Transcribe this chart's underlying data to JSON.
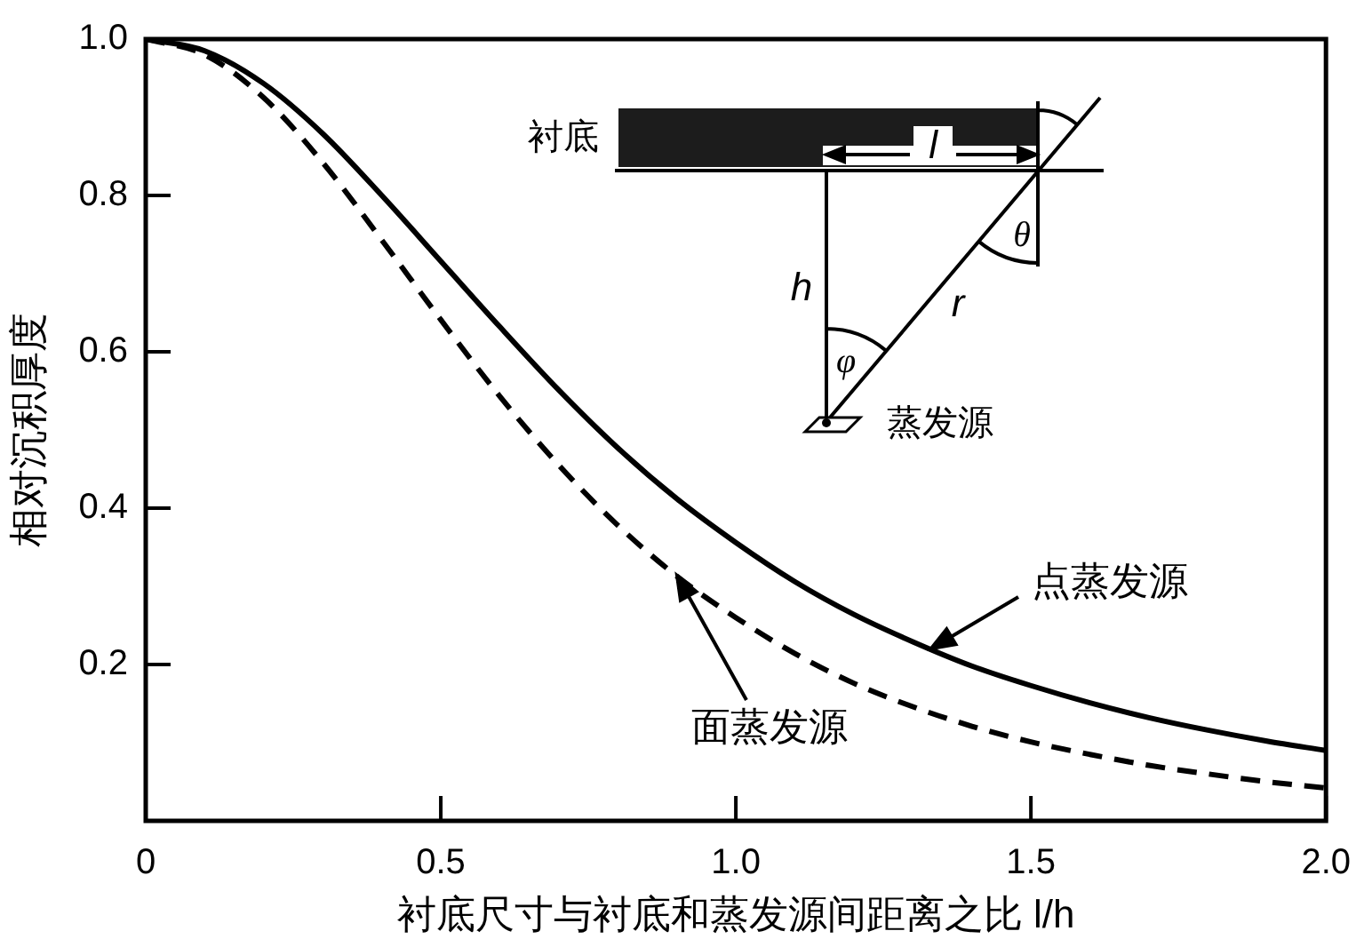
{
  "chart_data": {
    "type": "line",
    "xlabel": "衬底尺寸与衬底和蒸发源间距离之比 l/h",
    "ylabel": "相对沉积厚度",
    "x": [
      0,
      0.1,
      0.2,
      0.3,
      0.4,
      0.5,
      0.6,
      0.7,
      0.8,
      0.9,
      1,
      1.1,
      1.2,
      1.3,
      1.4,
      1.5,
      1.6,
      1.7,
      1.8,
      1.9,
      2
    ],
    "series": [
      {
        "name": "点蒸发源",
        "color": "#000000",
        "line_style": "solid",
        "values": [
          1,
          0.985,
          0.943,
          0.879,
          0.8,
          0.716,
          0.632,
          0.551,
          0.477,
          0.412,
          0.356,
          0.306,
          0.264,
          0.229,
          0.198,
          0.173,
          0.151,
          0.132,
          0.116,
          0.102,
          0.09
        ]
      },
      {
        "name": "面蒸发源",
        "color": "#000000",
        "line_style": "dashed",
        "values": [
          1,
          0.98,
          0.925,
          0.842,
          0.743,
          0.641,
          0.543,
          0.455,
          0.378,
          0.313,
          0.26,
          0.214,
          0.176,
          0.146,
          0.121,
          0.101,
          0.085,
          0.071,
          0.06,
          0.05,
          0.042
        ]
      }
    ],
    "xlim": [
      0,
      2
    ],
    "xticks": [
      0,
      0.5,
      {
        "value": 1,
        "label": "1.0"
      },
      1.5,
      {
        "value": 2,
        "label": "2.0"
      }
    ],
    "ylim": [
      0,
      1
    ],
    "yticks": [
      0.2,
      0.4,
      0.6,
      0.8,
      {
        "value": 1,
        "label": "1.0"
      }
    ],
    "annotations": [
      "衬底",
      "l",
      "h",
      "r",
      "θ",
      "φ",
      "蒸发源"
    ]
  }
}
